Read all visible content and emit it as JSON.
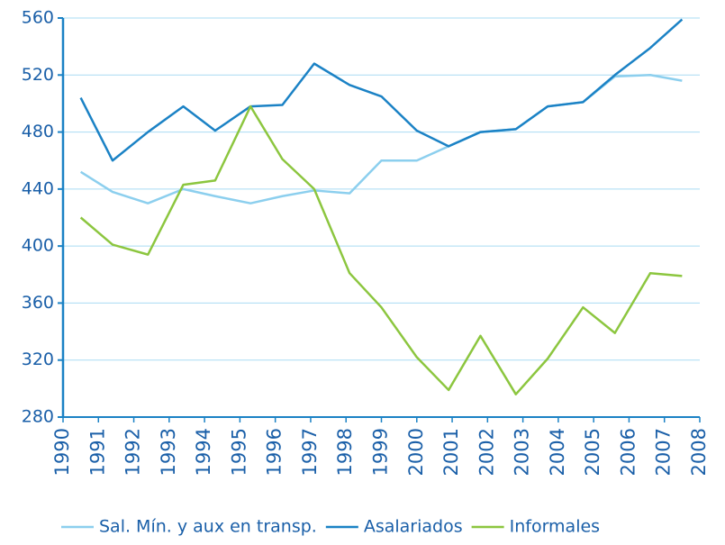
{
  "chart_data": {
    "type": "line",
    "x": [
      1990.5,
      1991.4,
      1992.4,
      1993.4,
      1994.3,
      1995.3,
      1996.2,
      1997.1,
      1998.1,
      1999.0,
      2000.0,
      2000.9,
      2001.8,
      2002.8,
      2003.7,
      2004.7,
      2005.6,
      2006.6,
      2007.5
    ],
    "series": [
      {
        "name": "Sal. Mín. y aux en transp.",
        "color": "#8ccfee",
        "values": [
          452,
          438,
          430,
          440,
          435,
          430,
          435,
          439,
          437,
          460,
          460,
          470,
          480,
          482,
          498,
          501,
          519,
          520,
          516
        ]
      },
      {
        "name": "Asalariados",
        "color": "#1b82c5",
        "values": [
          504,
          460,
          480,
          498,
          481,
          498,
          499,
          528,
          513,
          505,
          481,
          470,
          480,
          482,
          498,
          501,
          520,
          539,
          559
        ]
      },
      {
        "name": "Informales",
        "color": "#8cc63f",
        "values": [
          420,
          401,
          394,
          443,
          446,
          498,
          461,
          440,
          381,
          357,
          322,
          299,
          337,
          296,
          321,
          357,
          339,
          381,
          379
        ]
      }
    ],
    "xlim": [
      1990,
      2008
    ],
    "xticks": [
      1990,
      1991,
      1992,
      1993,
      1994,
      1995,
      1996,
      1997,
      1998,
      1999,
      2000,
      2001,
      2002,
      2003,
      2004,
      2005,
      2006,
      2007,
      2008
    ],
    "ylim": [
      280,
      560
    ],
    "yticks": [
      280,
      320,
      360,
      400,
      440,
      480,
      520,
      560
    ],
    "grid": true
  }
}
